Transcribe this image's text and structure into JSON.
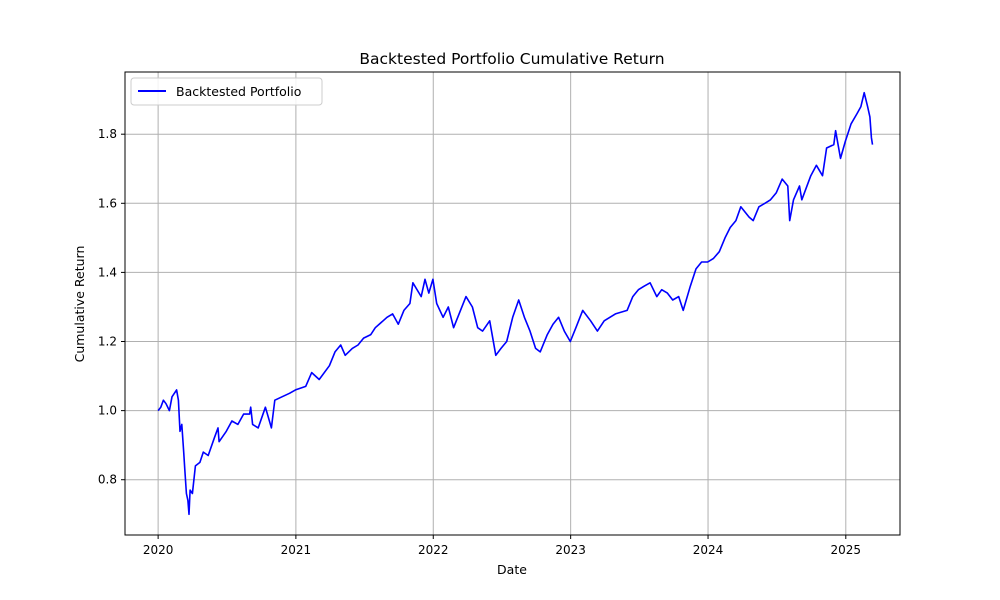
{
  "chart_data": {
    "type": "line",
    "title": "Backtested Portfolio Cumulative Return",
    "xlabel": "Date",
    "ylabel": "Cumulative Return",
    "xlim": [
      "2019-10-05",
      "2025-05-25"
    ],
    "ylim": [
      0.64,
      1.98
    ],
    "x_ticks": [
      "2020",
      "2021",
      "2022",
      "2023",
      "2024",
      "2025"
    ],
    "y_ticks": [
      "0.8",
      "1.0",
      "1.2",
      "1.4",
      "1.6",
      "1.8"
    ],
    "grid": true,
    "legend_position": "upper-left",
    "series": [
      {
        "name": "Backtested Portfolio",
        "color": "#0000ff",
        "points": [
          [
            "2020-01-01",
            1.0
          ],
          [
            "2020-01-08",
            1.01
          ],
          [
            "2020-01-15",
            1.03
          ],
          [
            "2020-01-22",
            1.02
          ],
          [
            "2020-01-31",
            1.0
          ],
          [
            "2020-02-07",
            1.04
          ],
          [
            "2020-02-19",
            1.06
          ],
          [
            "2020-02-24",
            1.03
          ],
          [
            "2020-02-28",
            0.94
          ],
          [
            "2020-03-04",
            0.96
          ],
          [
            "2020-03-09",
            0.88
          ],
          [
            "2020-03-12",
            0.83
          ],
          [
            "2020-03-16",
            0.76
          ],
          [
            "2020-03-20",
            0.74
          ],
          [
            "2020-03-23",
            0.7
          ],
          [
            "2020-03-26",
            0.77
          ],
          [
            "2020-04-01",
            0.76
          ],
          [
            "2020-04-09",
            0.84
          ],
          [
            "2020-04-21",
            0.85
          ],
          [
            "2020-04-30",
            0.88
          ],
          [
            "2020-05-13",
            0.87
          ],
          [
            "2020-05-29",
            0.92
          ],
          [
            "2020-06-08",
            0.95
          ],
          [
            "2020-06-11",
            0.91
          ],
          [
            "2020-06-30",
            0.94
          ],
          [
            "2020-07-15",
            0.97
          ],
          [
            "2020-07-31",
            0.96
          ],
          [
            "2020-08-15",
            0.99
          ],
          [
            "2020-08-31",
            0.99
          ],
          [
            "2020-09-03",
            1.01
          ],
          [
            "2020-09-08",
            0.96
          ],
          [
            "2020-09-23",
            0.95
          ],
          [
            "2020-10-12",
            1.01
          ],
          [
            "2020-10-28",
            0.95
          ],
          [
            "2020-11-06",
            1.03
          ],
          [
            "2020-11-25",
            1.04
          ],
          [
            "2020-12-15",
            1.05
          ],
          [
            "2020-12-31",
            1.06
          ],
          [
            "2021-01-27",
            1.07
          ],
          [
            "2021-02-12",
            1.11
          ],
          [
            "2021-03-04",
            1.09
          ],
          [
            "2021-03-31",
            1.13
          ],
          [
            "2021-04-15",
            1.17
          ],
          [
            "2021-04-30",
            1.19
          ],
          [
            "2021-05-12",
            1.16
          ],
          [
            "2021-05-31",
            1.18
          ],
          [
            "2021-06-15",
            1.19
          ],
          [
            "2021-06-30",
            1.21
          ],
          [
            "2021-07-19",
            1.22
          ],
          [
            "2021-07-31",
            1.24
          ],
          [
            "2021-08-31",
            1.27
          ],
          [
            "2021-09-15",
            1.28
          ],
          [
            "2021-09-30",
            1.25
          ],
          [
            "2021-10-15",
            1.29
          ],
          [
            "2021-10-31",
            1.31
          ],
          [
            "2021-11-08",
            1.37
          ],
          [
            "2021-11-30",
            1.33
          ],
          [
            "2021-12-10",
            1.38
          ],
          [
            "2021-12-20",
            1.34
          ],
          [
            "2021-12-31",
            1.38
          ],
          [
            "2022-01-10",
            1.31
          ],
          [
            "2022-01-27",
            1.27
          ],
          [
            "2022-02-10",
            1.3
          ],
          [
            "2022-02-24",
            1.24
          ],
          [
            "2022-03-29",
            1.33
          ],
          [
            "2022-04-15",
            1.3
          ],
          [
            "2022-04-29",
            1.24
          ],
          [
            "2022-05-12",
            1.23
          ],
          [
            "2022-05-31",
            1.26
          ],
          [
            "2022-06-16",
            1.16
          ],
          [
            "2022-06-30",
            1.18
          ],
          [
            "2022-07-15",
            1.2
          ],
          [
            "2022-07-31",
            1.27
          ],
          [
            "2022-08-16",
            1.32
          ],
          [
            "2022-08-31",
            1.27
          ],
          [
            "2022-09-15",
            1.23
          ],
          [
            "2022-09-30",
            1.18
          ],
          [
            "2022-10-12",
            1.17
          ],
          [
            "2022-10-31",
            1.22
          ],
          [
            "2022-11-15",
            1.25
          ],
          [
            "2022-11-30",
            1.27
          ],
          [
            "2022-12-15",
            1.23
          ],
          [
            "2022-12-31",
            1.2
          ],
          [
            "2023-01-15",
            1.24
          ],
          [
            "2023-02-02",
            1.29
          ],
          [
            "2023-02-23",
            1.26
          ],
          [
            "2023-03-13",
            1.23
          ],
          [
            "2023-03-31",
            1.26
          ],
          [
            "2023-04-30",
            1.28
          ],
          [
            "2023-05-31",
            1.29
          ],
          [
            "2023-06-15",
            1.33
          ],
          [
            "2023-06-30",
            1.35
          ],
          [
            "2023-07-15",
            1.36
          ],
          [
            "2023-07-31",
            1.37
          ],
          [
            "2023-08-18",
            1.33
          ],
          [
            "2023-08-31",
            1.35
          ],
          [
            "2023-09-15",
            1.34
          ],
          [
            "2023-09-29",
            1.32
          ],
          [
            "2023-10-15",
            1.33
          ],
          [
            "2023-10-27",
            1.29
          ],
          [
            "2023-11-15",
            1.36
          ],
          [
            "2023-11-30",
            1.41
          ],
          [
            "2023-12-15",
            1.43
          ],
          [
            "2023-12-31",
            1.43
          ],
          [
            "2024-01-15",
            1.44
          ],
          [
            "2024-01-31",
            1.46
          ],
          [
            "2024-02-15",
            1.5
          ],
          [
            "2024-02-29",
            1.53
          ],
          [
            "2024-03-15",
            1.55
          ],
          [
            "2024-03-28",
            1.59
          ],
          [
            "2024-04-19",
            1.56
          ],
          [
            "2024-04-30",
            1.55
          ],
          [
            "2024-05-15",
            1.59
          ],
          [
            "2024-05-31",
            1.6
          ],
          [
            "2024-06-15",
            1.61
          ],
          [
            "2024-06-30",
            1.63
          ],
          [
            "2024-07-16",
            1.67
          ],
          [
            "2024-07-31",
            1.65
          ],
          [
            "2024-08-05",
            1.55
          ],
          [
            "2024-08-15",
            1.61
          ],
          [
            "2024-08-31",
            1.65
          ],
          [
            "2024-09-06",
            1.61
          ],
          [
            "2024-09-30",
            1.68
          ],
          [
            "2024-10-15",
            1.71
          ],
          [
            "2024-10-31",
            1.68
          ],
          [
            "2024-11-11",
            1.76
          ],
          [
            "2024-11-30",
            1.77
          ],
          [
            "2024-12-05",
            1.81
          ],
          [
            "2024-12-18",
            1.73
          ],
          [
            "2024-12-31",
            1.78
          ],
          [
            "2025-01-15",
            1.83
          ],
          [
            "2025-01-31",
            1.86
          ],
          [
            "2025-02-10",
            1.88
          ],
          [
            "2025-02-19",
            1.92
          ],
          [
            "2025-02-28",
            1.88
          ],
          [
            "2025-03-06",
            1.85
          ],
          [
            "2025-03-10",
            1.79
          ],
          [
            "2025-03-13",
            1.77
          ]
        ]
      }
    ]
  }
}
